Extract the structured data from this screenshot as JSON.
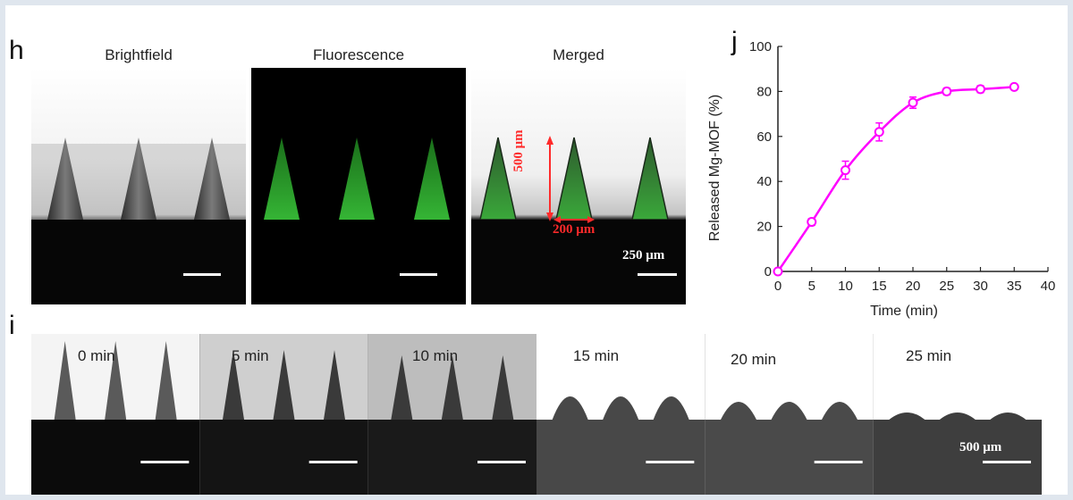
{
  "panels": {
    "h": {
      "letter": "h",
      "captions": [
        "Brightfield",
        "Fluorescence",
        "Merged"
      ],
      "dimension_height": "500 μm",
      "dimension_width": "200 μm",
      "scale_bar": "250 μm"
    },
    "i": {
      "letter": "i",
      "times": [
        "0 min",
        "5 min",
        "10 min",
        "15 min",
        "20 min",
        "25 min"
      ],
      "scale_bar": "500 μm"
    },
    "j": {
      "letter": "j"
    }
  },
  "colors": {
    "series": "#ff00ff",
    "fluorescence": "#2fae2f",
    "annotation": "#ff2a2a",
    "frame_bg": "#dfe6ee"
  },
  "chart_data": {
    "type": "line",
    "xlabel": "Time (min)",
    "ylabel": "Released Mg-MOF (%)",
    "xlim": [
      0,
      40
    ],
    "ylim": [
      0,
      100
    ],
    "xticks": [
      0,
      5,
      10,
      15,
      20,
      25,
      30,
      35,
      40
    ],
    "yticks": [
      0,
      20,
      40,
      60,
      80,
      100
    ],
    "grid": false,
    "x": [
      0,
      5,
      10,
      15,
      20,
      25,
      30,
      35
    ],
    "y": [
      0,
      22,
      45,
      62,
      75,
      80,
      81,
      82
    ],
    "error": [
      0,
      1.5,
      4,
      4,
      2.5,
      1.5,
      1.5,
      1
    ]
  }
}
